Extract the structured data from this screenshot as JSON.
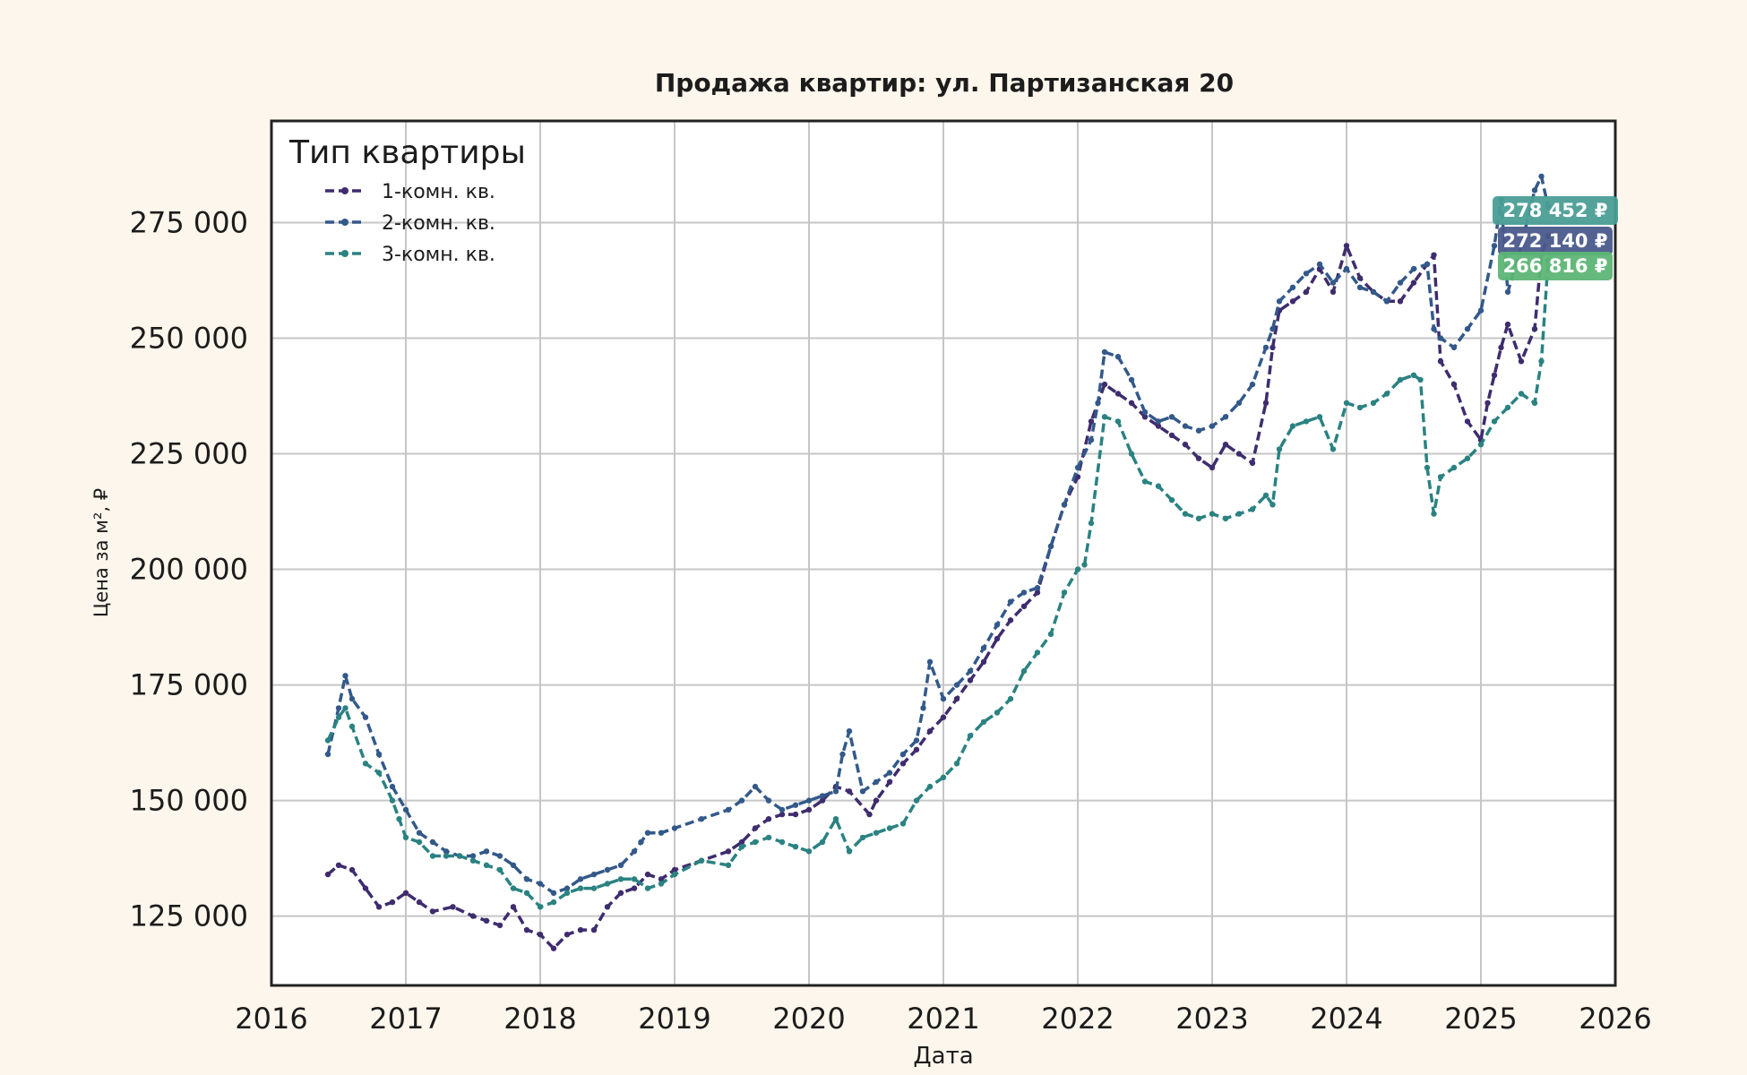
{
  "chart_data": {
    "type": "line",
    "title": "Продажа квартир: ул. Партизанская 20",
    "xlabel": "Дата",
    "ylabel": "Цена за м², ₽",
    "xlim": [
      2016,
      2026
    ],
    "ylim": [
      110000,
      297000
    ],
    "x_ticks": [
      2016,
      2017,
      2018,
      2019,
      2020,
      2021,
      2022,
      2023,
      2024,
      2025,
      2026
    ],
    "x_tick_labels": [
      "2016",
      "2017",
      "2018",
      "2019",
      "2020",
      "2021",
      "2022",
      "2023",
      "2024",
      "2025",
      "2026"
    ],
    "y_ticks": [
      125000,
      150000,
      175000,
      200000,
      225000,
      250000,
      275000
    ],
    "y_tick_labels": [
      "125 000",
      "150 000",
      "175 000",
      "200 000",
      "225 000",
      "250 000",
      "275 000"
    ],
    "grid": true,
    "legend": {
      "title": "Тип квартиры",
      "position": "top-left"
    },
    "series": [
      {
        "name": "1-комн. кв.",
        "color": "#3f2c6e",
        "last_value_label": "272 140 ₽",
        "x": [
          2016.42,
          2016.5,
          2016.6,
          2016.7,
          2016.8,
          2016.9,
          2017.0,
          2017.1,
          2017.2,
          2017.35,
          2017.5,
          2017.6,
          2017.7,
          2017.8,
          2017.9,
          2018.0,
          2018.1,
          2018.2,
          2018.3,
          2018.4,
          2018.5,
          2018.6,
          2018.7,
          2018.8,
          2018.9,
          2019.0,
          2019.2,
          2019.4,
          2019.5,
          2019.6,
          2019.7,
          2019.8,
          2019.9,
          2020.0,
          2020.1,
          2020.2,
          2020.3,
          2020.45,
          2020.5,
          2020.6,
          2020.7,
          2020.8,
          2020.9,
          2021.0,
          2021.1,
          2021.2,
          2021.3,
          2021.4,
          2021.5,
          2021.6,
          2021.7,
          2021.8,
          2021.9,
          2022.0,
          2022.1,
          2022.2,
          2022.3,
          2022.4,
          2022.5,
          2022.6,
          2022.7,
          2022.8,
          2022.9,
          2023.0,
          2023.1,
          2023.2,
          2023.3,
          2023.4,
          2023.45,
          2023.5,
          2023.6,
          2023.7,
          2023.8,
          2023.9,
          2024.0,
          2024.1,
          2024.2,
          2024.3,
          2024.4,
          2024.5,
          2024.6,
          2024.65,
          2024.7,
          2024.8,
          2024.9,
          2025.0,
          2025.05,
          2025.1,
          2025.15,
          2025.2,
          2025.3,
          2025.4,
          2025.45,
          2025.5
        ],
        "values": [
          134000,
          136000,
          135000,
          131000,
          127000,
          128000,
          130000,
          128000,
          126000,
          127000,
          125000,
          124000,
          123000,
          127000,
          122000,
          121000,
          118000,
          121000,
          122000,
          122000,
          127000,
          130000,
          131000,
          134000,
          133000,
          135000,
          137000,
          139000,
          141000,
          144000,
          146000,
          147000,
          147000,
          148000,
          150000,
          153000,
          152000,
          147000,
          150000,
          154000,
          158000,
          161000,
          165000,
          168000,
          172000,
          176000,
          180000,
          185000,
          189000,
          192000,
          195000,
          205000,
          214000,
          220000,
          232000,
          240000,
          238000,
          236000,
          233000,
          231000,
          229000,
          227000,
          224000,
          222000,
          227000,
          225000,
          223000,
          236000,
          248000,
          256000,
          258000,
          260000,
          265000,
          260000,
          270000,
          263000,
          260000,
          258000,
          258000,
          262000,
          266000,
          268000,
          245000,
          240000,
          232000,
          228000,
          236000,
          242000,
          248000,
          253000,
          245000,
          252000,
          268000,
          272140
        ]
      },
      {
        "name": "2-комн. кв.",
        "color": "#33598a",
        "last_value_label": "278 452 ₽",
        "x": [
          2016.42,
          2016.5,
          2016.55,
          2016.6,
          2016.7,
          2016.8,
          2016.9,
          2017.0,
          2017.1,
          2017.2,
          2017.3,
          2017.4,
          2017.5,
          2017.6,
          2017.7,
          2017.8,
          2017.9,
          2018.0,
          2018.1,
          2018.2,
          2018.3,
          2018.4,
          2018.5,
          2018.6,
          2018.7,
          2018.75,
          2018.8,
          2018.9,
          2019.0,
          2019.2,
          2019.4,
          2019.5,
          2019.6,
          2019.7,
          2019.8,
          2019.9,
          2020.0,
          2020.1,
          2020.2,
          2020.25,
          2020.3,
          2020.4,
          2020.5,
          2020.6,
          2020.7,
          2020.8,
          2020.85,
          2020.9,
          2021.0,
          2021.1,
          2021.2,
          2021.3,
          2021.4,
          2021.5,
          2021.6,
          2021.7,
          2021.8,
          2021.9,
          2022.0,
          2022.1,
          2022.15,
          2022.2,
          2022.3,
          2022.4,
          2022.5,
          2022.6,
          2022.7,
          2022.8,
          2022.9,
          2023.0,
          2023.1,
          2023.2,
          2023.3,
          2023.4,
          2023.45,
          2023.5,
          2023.6,
          2023.7,
          2023.8,
          2023.9,
          2024.0,
          2024.1,
          2024.2,
          2024.3,
          2024.4,
          2024.5,
          2024.6,
          2024.65,
          2024.7,
          2024.8,
          2024.9,
          2025.0,
          2025.1,
          2025.15,
          2025.2,
          2025.3,
          2025.4,
          2025.45,
          2025.5
        ],
        "values": [
          160000,
          170000,
          177000,
          172000,
          168000,
          160000,
          153000,
          148000,
          143000,
          141000,
          139000,
          138000,
          138000,
          139000,
          138000,
          136000,
          133000,
          132000,
          130000,
          131000,
          133000,
          134000,
          135000,
          136000,
          139000,
          141000,
          143000,
          143000,
          144000,
          146000,
          148000,
          150000,
          153000,
          150000,
          148000,
          149000,
          150000,
          151000,
          152000,
          160000,
          165000,
          152000,
          154000,
          156000,
          160000,
          163000,
          170000,
          180000,
          172000,
          175000,
          178000,
          183000,
          188000,
          193000,
          195000,
          196000,
          205000,
          214000,
          222000,
          228000,
          236000,
          247000,
          246000,
          241000,
          234000,
          232000,
          233000,
          231000,
          230000,
          231000,
          233000,
          236000,
          240000,
          248000,
          252000,
          258000,
          261000,
          264000,
          266000,
          262000,
          265000,
          261000,
          260000,
          258000,
          262000,
          265000,
          266000,
          252000,
          250000,
          248000,
          252000,
          256000,
          270000,
          280000,
          260000,
          270000,
          282000,
          285000,
          278452
        ]
      },
      {
        "name": "3-комн. кв.",
        "color": "#2a8281",
        "last_value_label": "266 816 ₽",
        "x": [
          2016.42,
          2016.5,
          2016.55,
          2016.6,
          2016.7,
          2016.8,
          2016.9,
          2016.95,
          2017.0,
          2017.1,
          2017.2,
          2017.3,
          2017.4,
          2017.5,
          2017.6,
          2017.7,
          2017.8,
          2017.9,
          2018.0,
          2018.1,
          2018.2,
          2018.3,
          2018.4,
          2018.5,
          2018.6,
          2018.7,
          2018.8,
          2018.9,
          2019.0,
          2019.2,
          2019.4,
          2019.5,
          2019.6,
          2019.7,
          2019.8,
          2019.9,
          2020.0,
          2020.1,
          2020.2,
          2020.3,
          2020.4,
          2020.5,
          2020.6,
          2020.7,
          2020.8,
          2020.9,
          2021.0,
          2021.1,
          2021.2,
          2021.3,
          2021.4,
          2021.5,
          2021.6,
          2021.7,
          2021.8,
          2021.9,
          2022.0,
          2022.05,
          2022.1,
          2022.2,
          2022.3,
          2022.4,
          2022.5,
          2022.6,
          2022.7,
          2022.8,
          2022.9,
          2023.0,
          2023.1,
          2023.2,
          2023.3,
          2023.4,
          2023.45,
          2023.5,
          2023.6,
          2023.7,
          2023.8,
          2023.9,
          2024.0,
          2024.1,
          2024.2,
          2024.3,
          2024.4,
          2024.5,
          2024.55,
          2024.6,
          2024.65,
          2024.7,
          2024.8,
          2024.9,
          2025.0,
          2025.1,
          2025.2,
          2025.3,
          2025.4,
          2025.45,
          2025.5
        ],
        "values": [
          163000,
          168000,
          170000,
          166000,
          158000,
          156000,
          150000,
          146000,
          142000,
          141000,
          138000,
          138000,
          138000,
          137000,
          136000,
          135000,
          131000,
          130000,
          127000,
          128000,
          130000,
          131000,
          131000,
          132000,
          133000,
          133000,
          131000,
          132000,
          134000,
          137000,
          136000,
          140000,
          141000,
          142000,
          141000,
          140000,
          139000,
          141000,
          146000,
          139000,
          142000,
          143000,
          144000,
          145000,
          150000,
          153000,
          155000,
          158000,
          164000,
          167000,
          169000,
          172000,
          178000,
          182000,
          186000,
          195000,
          200000,
          201000,
          210000,
          233000,
          232000,
          225000,
          219000,
          218000,
          215000,
          212000,
          211000,
          212000,
          211000,
          212000,
          213000,
          216000,
          214000,
          226000,
          231000,
          232000,
          233000,
          226000,
          236000,
          235000,
          236000,
          238000,
          241000,
          242000,
          241000,
          222000,
          212000,
          220000,
          222000,
          224000,
          227000,
          232000,
          235000,
          238000,
          236000,
          245000,
          266816
        ]
      }
    ]
  }
}
